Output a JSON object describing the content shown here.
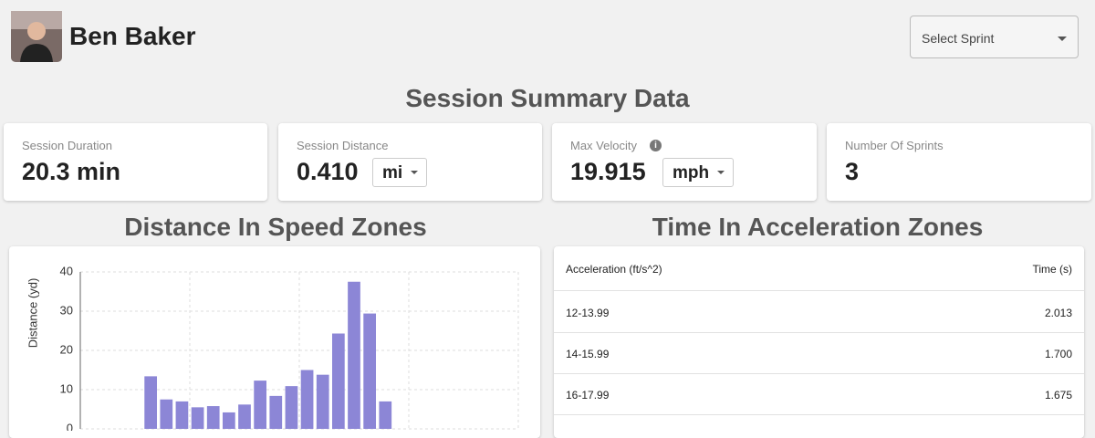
{
  "header": {
    "name": "Ben Baker",
    "select_placeholder": "Select Sprint"
  },
  "summary": {
    "title": "Session Summary Data",
    "cards": [
      {
        "label": "Session Duration",
        "value": "20.3 min"
      },
      {
        "label": "Session Distance",
        "value": "0.410",
        "unit": "mi"
      },
      {
        "label": "Max Velocity",
        "value": "19.915",
        "unit": "mph"
      },
      {
        "label": "Number Of Sprints",
        "value": "3"
      }
    ]
  },
  "chart_data": {
    "type": "bar",
    "title": "Distance In Speed Zones",
    "y_label": "Distance (yd)",
    "categories": [
      null,
      null,
      null,
      null,
      null,
      null,
      null,
      null,
      null,
      null,
      null,
      null,
      null,
      null,
      null,
      null,
      null,
      null,
      null,
      null,
      null,
      null,
      null,
      null,
      null,
      null,
      null,
      null
    ],
    "values": [
      0,
      0,
      0,
      0,
      13.4,
      7.5,
      7,
      5.5,
      5.8,
      4.2,
      6.2,
      12.3,
      8.4,
      10.9,
      15,
      13.8,
      24.3,
      37.5,
      29.4,
      7,
      0,
      0,
      0,
      0,
      0,
      0,
      0,
      0
    ],
    "color": "#8c86d6",
    "ylim": [
      0,
      40
    ],
    "yticks": [
      0,
      10,
      20,
      30,
      40
    ],
    "grid": true
  },
  "table": {
    "title": "Time In Acceleration Zones",
    "columns": [
      "Acceleration (ft/s^2)",
      "Time (s)"
    ],
    "rows": [
      [
        "12-13.99",
        "2.013"
      ],
      [
        "14-15.99",
        "1.700"
      ],
      [
        "16-17.99",
        "1.675"
      ]
    ]
  }
}
